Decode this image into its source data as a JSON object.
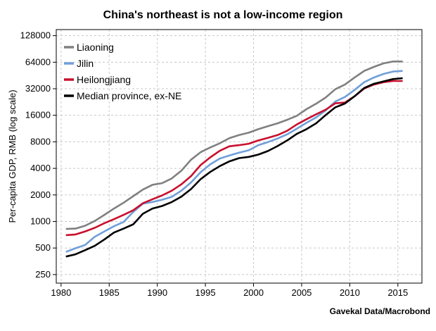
{
  "chart_data": {
    "type": "line",
    "title": "China's northeast is not a low-income region",
    "xlabel": "",
    "ylabel": "Per-capita GDP, RMB (log scale)",
    "source": "Gavekal Data/Macrobond",
    "y_scale": "log2",
    "ylim": [
      200,
      150000
    ],
    "xlim": [
      1979.5,
      2017.5
    ],
    "grid": true,
    "legend_position": "top-left",
    "x_ticks": [
      1980,
      1985,
      1990,
      1995,
      2000,
      2005,
      2010,
      2015
    ],
    "y_ticks": [
      250,
      500,
      1000,
      2000,
      4000,
      8000,
      16000,
      32000,
      64000,
      128000
    ],
    "x": [
      1980,
      1981,
      1982,
      1983,
      1984,
      1985,
      1986,
      1987,
      1988,
      1989,
      1990,
      1991,
      1992,
      1993,
      1994,
      1995,
      1996,
      1997,
      1998,
      1999,
      2000,
      2001,
      2002,
      2003,
      2004,
      2005,
      2006,
      2007,
      2008,
      2009,
      2010,
      2011,
      2012,
      2013,
      2014,
      2015
    ],
    "series": [
      {
        "name": "Liaoning",
        "color": "#808080",
        "values": [
          823,
          830,
          895,
          1012,
          1188,
          1402,
          1633,
          1938,
          2301,
          2607,
          2719,
          3073,
          3763,
          5011,
          6103,
          6904,
          7709,
          8823,
          9553,
          10162,
          11140,
          12060,
          12980,
          14230,
          15800,
          18780,
          21630,
          25500,
          31600,
          35700,
          42900,
          51000,
          56600,
          62100,
          65200,
          65200
        ]
      },
      {
        "name": "Jilin",
        "color": "#6f9fd8",
        "values": [
          452,
          497,
          542,
          671,
          772,
          883,
          987,
          1284,
          1591,
          1661,
          1765,
          1901,
          2231,
          2767,
          3620,
          4438,
          5169,
          5599,
          6029,
          6412,
          7341,
          7953,
          8720,
          9733,
          11280,
          13150,
          15140,
          18210,
          22890,
          25820,
          31040,
          38000,
          42900,
          47080,
          50100,
          51000
        ]
      },
      {
        "name": "Heilongjiang",
        "color": "#c8102e",
        "values": [
          700,
          713,
          772,
          847,
          957,
          1062,
          1188,
          1340,
          1610,
          1788,
          1974,
          2231,
          2638,
          3268,
          4358,
          5330,
          6337,
          7119,
          7341,
          7615,
          8307,
          8877,
          9553,
          10670,
          12590,
          14430,
          16410,
          18550,
          21890,
          22310,
          26300,
          32190,
          35700,
          38000,
          39190,
          39190
        ]
      },
      {
        "name": "Median province, ex-NE",
        "color": "#000000",
        "values": [
          400,
          424,
          473,
          529,
          624,
          749,
          830,
          928,
          1224,
          1402,
          1499,
          1661,
          1913,
          2328,
          3018,
          3644,
          4253,
          4808,
          5230,
          5394,
          5736,
          6296,
          7164,
          8307,
          9855,
          11140,
          12980,
          16120,
          19710,
          21750,
          26300,
          32590,
          36390,
          38720,
          41140,
          42150
        ]
      }
    ]
  }
}
